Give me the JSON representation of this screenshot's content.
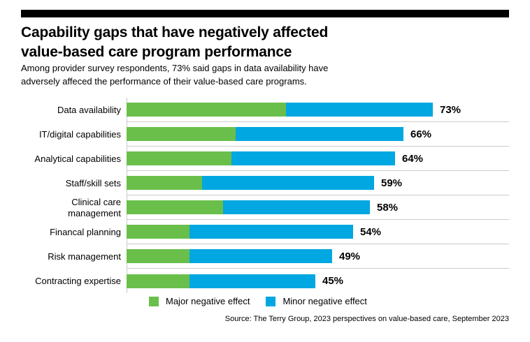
{
  "header": {
    "title_line1": "Capability gaps that have negatively affected",
    "title_line2": "value-based care program performance",
    "subtitle_line1": "Among provider survey respondents, 73%  said gaps in data availability have",
    "subtitle_line2": "adversely affeced the performance of their value-based care programs."
  },
  "chart_data": {
    "type": "bar",
    "orientation": "horizontal",
    "stacked": true,
    "categories": [
      "Data availability",
      "IT/digital capabilities",
      "Analytical capabilities",
      "Staff/skill sets",
      "Clinical care management",
      "Financal planning",
      "Risk management",
      "Contracting expertise"
    ],
    "series": [
      {
        "name": "Major negative effect",
        "color": "#6abf4b",
        "values": [
          38,
          26,
          25,
          18,
          23,
          15,
          15,
          15
        ]
      },
      {
        "name": "Minor negative effect",
        "color": "#00a7e0",
        "values": [
          35,
          40,
          39,
          41,
          35,
          39,
          34,
          30
        ]
      }
    ],
    "totals": [
      "73%",
      "66%",
      "64%",
      "59%",
      "58%",
      "54%",
      "49%",
      "45%"
    ],
    "xlim": [
      0,
      91
    ],
    "grid": "horizontal row separators",
    "legend_position": "bottom"
  },
  "legend": {
    "items": [
      {
        "label": "Major negative effect",
        "color": "#6abf4b"
      },
      {
        "label": "Minor negative effect",
        "color": "#00a7e0"
      }
    ]
  },
  "source": "Source: The Terry Group, 2023 perspectives on value-based care, September 2023",
  "colors": {
    "major_green": "#6abf4b",
    "minor_blue": "#00a7e0",
    "top_rule": "#000000",
    "separator": "#cbcbcb"
  }
}
